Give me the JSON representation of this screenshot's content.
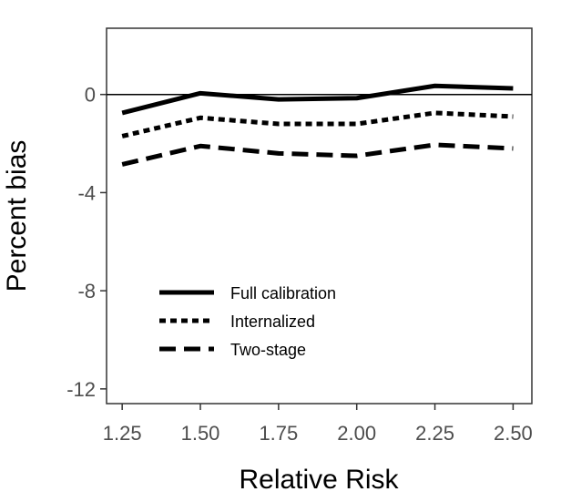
{
  "chart_data": {
    "type": "line",
    "title": "",
    "xlabel": "Relative Risk",
    "ylabel": "Percent bias",
    "x": [
      1.25,
      1.5,
      1.75,
      2.0,
      2.25,
      2.5
    ],
    "x_tick_labels": [
      "1.25",
      "1.50",
      "1.75",
      "2.00",
      "2.25",
      "2.50"
    ],
    "y_ticks": [
      0,
      -4,
      -8,
      -12
    ],
    "y_tick_labels": [
      "0",
      "-4",
      "-8",
      "-12"
    ],
    "xlim": [
      1.2,
      2.56
    ],
    "ylim": [
      -12.6,
      2.7
    ],
    "reference_line_y": 0,
    "grid": false,
    "legend_position": "bottom-left (inside)",
    "series": [
      {
        "name": "Full calibration",
        "style": "solid",
        "values": [
          -0.75,
          0.05,
          -0.2,
          -0.15,
          0.35,
          0.25
        ]
      },
      {
        "name": "Internalized",
        "style": "dotted",
        "values": [
          -1.7,
          -0.95,
          -1.2,
          -1.2,
          -0.75,
          -0.9
        ]
      },
      {
        "name": "Two-stage",
        "style": "dashed",
        "values": [
          -2.85,
          -2.1,
          -2.4,
          -2.5,
          -2.05,
          -2.2
        ]
      }
    ]
  }
}
